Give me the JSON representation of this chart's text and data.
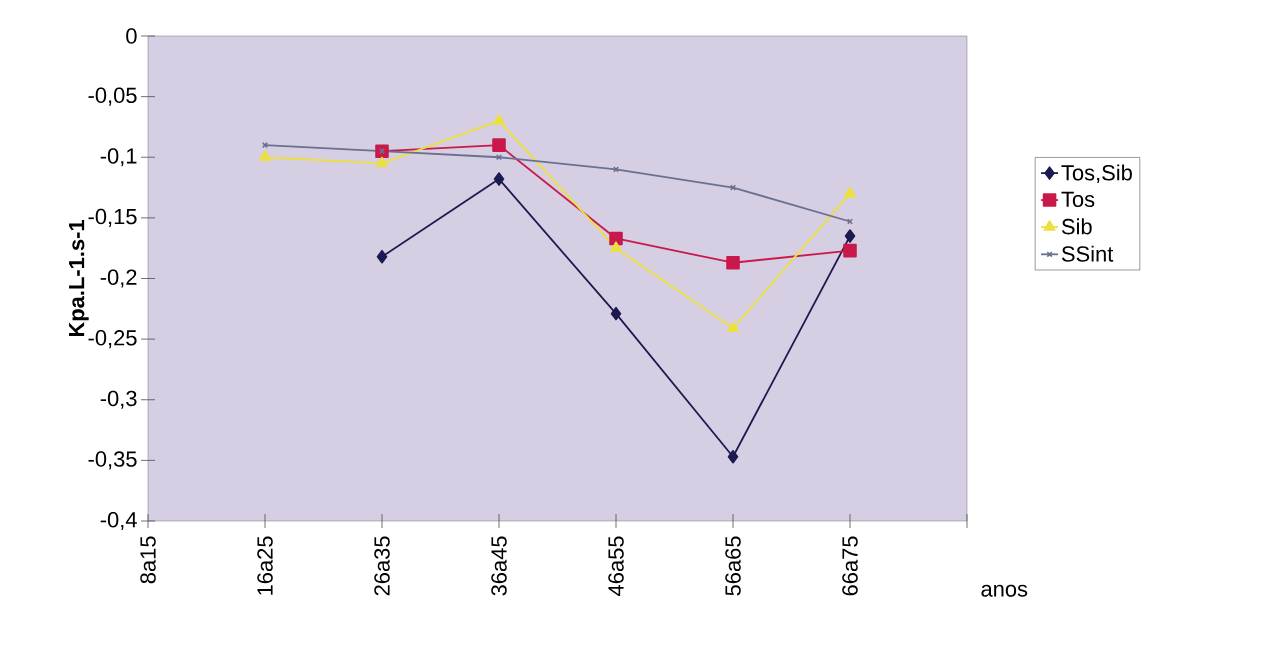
{
  "chart_data": {
    "type": "line",
    "ylabel": "Kpa.L-1.s-1",
    "xlabel": "anos",
    "categories": [
      "8a15",
      "16a25",
      "26a35",
      "36a45",
      "46a55",
      "56a65",
      "66a75"
    ],
    "series": [
      {
        "name": "Tos,Sib",
        "color": "#1c1a50",
        "marker": "diamond",
        "values": [
          null,
          null,
          -0.182,
          -0.118,
          -0.229,
          -0.347,
          -0.165
        ]
      },
      {
        "name": "Tos",
        "color": "#c8194a",
        "marker": "square",
        "values": [
          null,
          null,
          -0.095,
          -0.09,
          -0.167,
          -0.187,
          -0.177
        ]
      },
      {
        "name": "Sib",
        "color": "#ece040",
        "marker": "triangle",
        "values": [
          null,
          -0.1,
          -0.105,
          -0.07,
          -0.175,
          -0.241,
          -0.13
        ]
      },
      {
        "name": "SSint",
        "color": "#6a7090",
        "marker": "cross",
        "values": [
          null,
          -0.09,
          -0.095,
          -0.1,
          -0.11,
          -0.125,
          -0.153
        ]
      }
    ],
    "ylim": [
      -0.4,
      0
    ],
    "yticks": [
      {
        "value": -0.4,
        "label": "-0,4"
      },
      {
        "value": -0.35,
        "label": "-0,35"
      },
      {
        "value": -0.3,
        "label": "-0,3"
      },
      {
        "value": -0.25,
        "label": "-0,25"
      },
      {
        "value": -0.2,
        "label": "-0,2"
      },
      {
        "value": -0.15,
        "label": "-0,15"
      },
      {
        "value": -0.1,
        "label": "-0,1"
      },
      {
        "value": -0.05,
        "label": "-0,05"
      },
      0
    ],
    "legend": "right",
    "line_style": "solid"
  }
}
